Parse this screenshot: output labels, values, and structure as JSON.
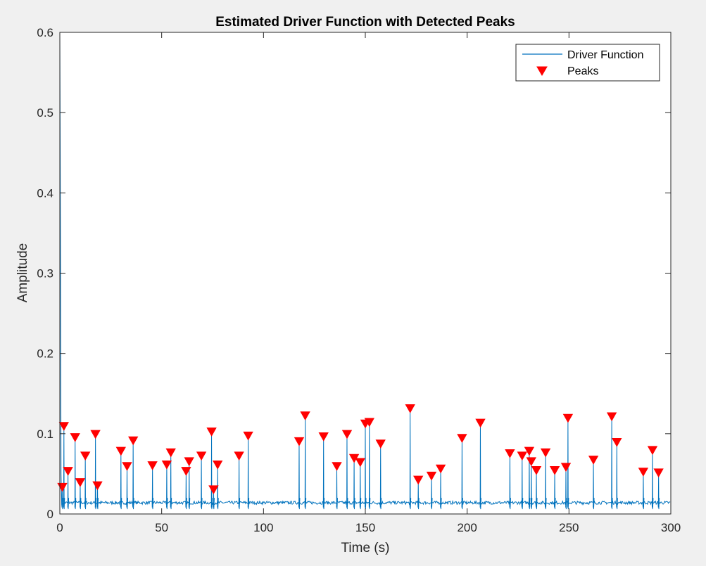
{
  "chart_data": {
    "type": "line",
    "title": "Estimated Driver Function with Detected Peaks",
    "xlabel": "Time (s)",
    "ylabel": "Amplitude",
    "xlim": [
      0,
      300
    ],
    "ylim": [
      0,
      0.6
    ],
    "xticks": [
      0,
      50,
      100,
      150,
      200,
      250,
      300
    ],
    "yticks": [
      0,
      0.1,
      0.2,
      0.3,
      0.4,
      0.5,
      0.6
    ],
    "xtick_labels": [
      "0",
      "50",
      "100",
      "150",
      "200",
      "250",
      "300"
    ],
    "ytick_labels": [
      "0",
      "0.1",
      "0.2",
      "0.3",
      "0.4",
      "0.5",
      "0.6"
    ],
    "grid": false,
    "legend": {
      "placement": "top-right",
      "entries": [
        "Driver Function",
        "Peaks"
      ]
    },
    "colors": {
      "driver_function": "#0072BD",
      "peaks": "#FF0000"
    },
    "series": [
      {
        "name": "Driver Function",
        "style": "line",
        "baseline": 0.014,
        "initial_spike": 0.6
      },
      {
        "name": "Peaks",
        "style": "marker-triangle-down",
        "x": [
          1.2,
          2,
          4,
          7.5,
          10,
          12.5,
          17.5,
          18.5,
          30,
          33,
          36,
          45.5,
          52.5,
          54.5,
          62,
          63.5,
          69.5,
          74.5,
          75.5,
          77.5,
          88,
          92.5,
          117.5,
          120.5,
          129.5,
          136,
          141,
          144.5,
          147.5,
          150,
          152,
          157.5,
          172,
          176,
          182.5,
          187,
          197.5,
          206.5,
          221,
          227,
          230.5,
          231.5,
          234,
          238.5,
          243,
          248.5,
          249.5,
          262,
          271,
          273.5,
          286.5,
          291,
          294
        ],
        "y": [
          0.033,
          0.109,
          0.053,
          0.095,
          0.039,
          0.072,
          0.099,
          0.035,
          0.078,
          0.059,
          0.091,
          0.06,
          0.061,
          0.076,
          0.053,
          0.065,
          0.072,
          0.102,
          0.03,
          0.061,
          0.072,
          0.097,
          0.09,
          0.122,
          0.096,
          0.059,
          0.099,
          0.069,
          0.064,
          0.112,
          0.114,
          0.087,
          0.131,
          0.042,
          0.047,
          0.056,
          0.094,
          0.113,
          0.075,
          0.072,
          0.078,
          0.065,
          0.054,
          0.076,
          0.054,
          0.058,
          0.119,
          0.067,
          0.121,
          0.089,
          0.052,
          0.079,
          0.051
        ]
      }
    ]
  }
}
